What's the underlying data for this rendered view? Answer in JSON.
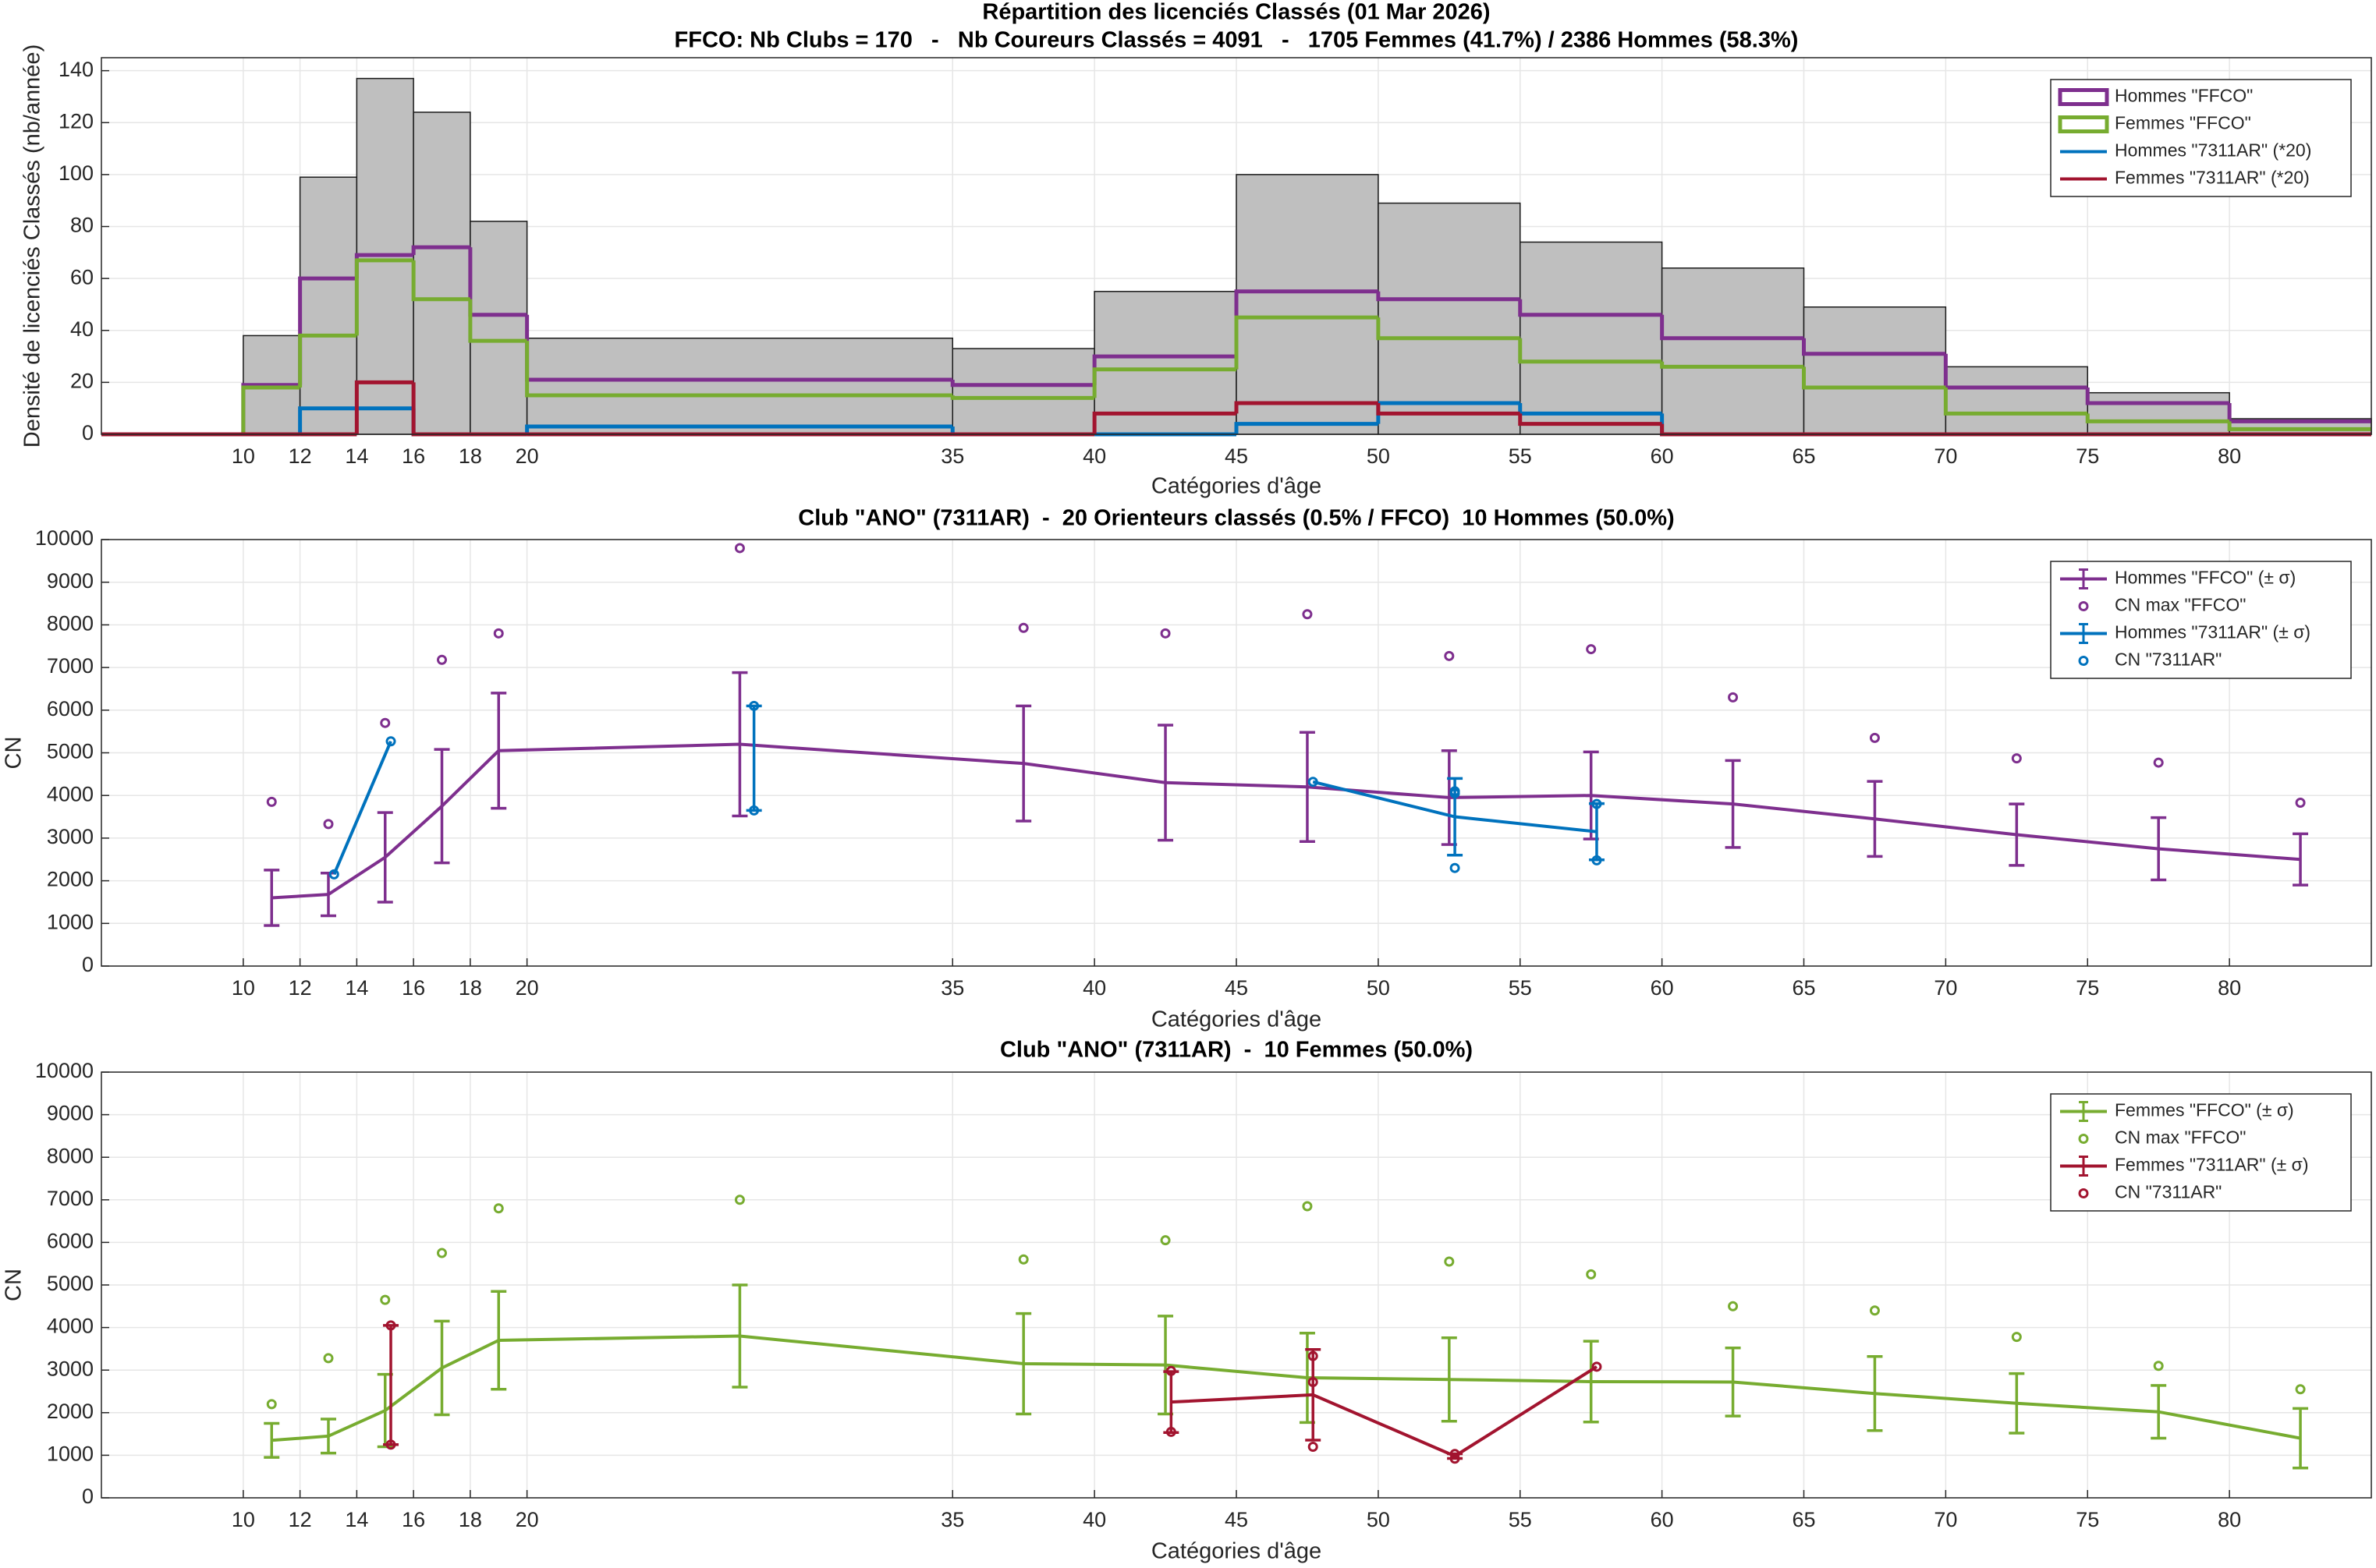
{
  "chart_data": [
    {
      "type": "histogram",
      "title": "Répartition des licenciés Classés (01 Mar 2026)",
      "subtitle": "FFCO: Nb Clubs = 170   -   Nb Coureurs Classés = 4091   -   1705 Femmes (41.7%) / 2386 Hommes (58.3%)",
      "xlabel": "Catégories d'âge",
      "ylabel": "Densité de licenciés Classés (nb/année)",
      "bins": [
        5,
        10,
        12,
        14,
        16,
        18,
        20,
        35,
        40,
        45,
        50,
        55,
        60,
        65,
        70,
        75,
        80,
        85
      ],
      "values": [
        0,
        38,
        99,
        137,
        124,
        82,
        37,
        33,
        55,
        100,
        89,
        74,
        64,
        49,
        26,
        16,
        6
      ],
      "color": "#bfbfbf",
      "series": [
        {
          "name": "Hommes \"FFCO\"",
          "color": "#7e2f8e",
          "values": [
            0,
            19,
            60,
            69,
            72,
            46,
            21,
            19,
            30,
            55,
            52,
            46,
            37,
            31,
            18,
            12,
            5
          ]
        },
        {
          "name": "Femmes \"FFCO\"",
          "color": "#77ac30",
          "values": [
            0,
            18,
            38,
            67,
            52,
            36,
            15,
            14,
            25,
            45,
            37,
            28,
            26,
            18,
            8,
            5,
            2
          ]
        },
        {
          "name": "Hommes \"7311AR\" (*20)",
          "color": "#0072bd",
          "values": [
            0,
            0,
            10,
            10,
            0,
            0,
            3,
            0,
            0,
            4,
            12,
            8,
            0,
            0,
            0,
            0,
            0
          ]
        },
        {
          "name": "Femmes \"7311AR\" (*20)",
          "color": "#a2142f",
          "values": [
            0,
            0,
            0,
            20,
            0,
            0,
            0,
            0,
            8,
            12,
            8,
            4,
            0,
            0,
            0,
            0,
            0
          ]
        }
      ],
      "xlim": [
        5,
        85
      ],
      "ylim": [
        0,
        145
      ],
      "xticks": [
        10,
        12,
        14,
        16,
        18,
        20,
        35,
        40,
        45,
        50,
        55,
        60,
        65,
        70,
        75,
        80
      ],
      "yticks": [
        0,
        20,
        40,
        60,
        80,
        100,
        120,
        140
      ],
      "grid": true,
      "legend": "northeast"
    },
    {
      "type": "line",
      "title": "Club \"ANO\" (7311AR)  -  20 Orienteurs classés (0.5% / FFCO)  10 Hommes (50.0%)",
      "xlabel": "Catégories d'âge",
      "ylabel": "CN",
      "series": [
        {
          "name": "Hommes \"FFCO\" (± σ)",
          "color": "#7e2f8e",
          "x": [
            11,
            13,
            15,
            17,
            19,
            27.5,
            37.5,
            42.5,
            47.5,
            52.5,
            57.5,
            62.5,
            67.5,
            72.5,
            77.5,
            82.5
          ],
          "values": [
            1600,
            1680,
            2550,
            3750,
            5050,
            5200,
            4750,
            4300,
            4200,
            3950,
            4000,
            3800,
            3450,
            3080,
            2750,
            2500
          ],
          "errors": [
            650,
            500,
            1050,
            1330,
            1350,
            1680,
            1350,
            1350,
            1280,
            1100,
            1020,
            1020,
            880,
            720,
            730,
            600
          ]
        },
        {
          "name": "CN max \"FFCO\"",
          "color": "#7e2f8e",
          "marker": "circle",
          "x": [
            11,
            13,
            15,
            17,
            19,
            27.5,
            37.5,
            42.5,
            47.5,
            52.5,
            57.5,
            62.5,
            67.5,
            72.5,
            77.5,
            82.5
          ],
          "values": [
            3850,
            3330,
            5700,
            7180,
            7800,
            9800,
            7930,
            7800,
            8250,
            7270,
            7430,
            6300,
            5350,
            4870,
            4770,
            3830
          ]
        },
        {
          "name": "Hommes \"7311AR\" (± σ)",
          "color": "#0072bd",
          "x": [
            11.2,
            13.2,
            15.2,
            17.2,
            19.2,
            28,
            37.7,
            42.7,
            47.7,
            52.7,
            57.7,
            62.7,
            67.7,
            72.7,
            77.7,
            82.7
          ],
          "values": [
            null,
            2150,
            5270,
            null,
            null,
            4875,
            null,
            null,
            4320,
            3500,
            3150,
            null,
            null,
            null,
            null,
            null
          ],
          "errors": [
            null,
            null,
            null,
            null,
            null,
            1225,
            null,
            null,
            null,
            900,
            660,
            null,
            null,
            null,
            null,
            null
          ]
        },
        {
          "name": "CN \"7311AR\"",
          "color": "#0072bd",
          "marker": "circle",
          "x": [
            13.2,
            15.2,
            28,
            28,
            47.7,
            52.7,
            52.7,
            52.7,
            57.7,
            57.7
          ],
          "values": [
            2150,
            5270,
            6100,
            3650,
            4320,
            4100,
            4050,
            2300,
            3800,
            2480
          ]
        }
      ],
      "xlim": [
        5,
        85
      ],
      "ylim": [
        0,
        10000
      ],
      "xticks": [
        10,
        12,
        14,
        16,
        18,
        20,
        35,
        40,
        45,
        50,
        55,
        60,
        65,
        70,
        75,
        80
      ],
      "yticks": [
        0,
        1000,
        2000,
        3000,
        4000,
        5000,
        6000,
        7000,
        8000,
        9000,
        10000
      ],
      "grid": true,
      "legend": "northeast"
    },
    {
      "type": "line",
      "title": "Club \"ANO\" (7311AR)  -  10 Femmes (50.0%)",
      "xlabel": "Catégories d'âge",
      "ylabel": "CN",
      "series": [
        {
          "name": "Femmes \"FFCO\" (± σ)",
          "color": "#77ac30",
          "x": [
            11,
            13,
            15,
            17,
            19,
            27.5,
            37.5,
            42.5,
            47.5,
            52.5,
            57.5,
            62.5,
            67.5,
            72.5,
            77.5,
            82.5
          ],
          "values": [
            1350,
            1450,
            2050,
            3050,
            3700,
            3800,
            3150,
            3120,
            2820,
            2780,
            2730,
            2720,
            2450,
            2220,
            2020,
            1400
          ],
          "errors": [
            400,
            400,
            850,
            1100,
            1150,
            1200,
            1180,
            1150,
            1050,
            980,
            950,
            800,
            870,
            700,
            620,
            700
          ]
        },
        {
          "name": "CN max \"FFCO\"",
          "color": "#77ac30",
          "marker": "circle",
          "x": [
            11,
            13,
            15,
            17,
            19,
            27.5,
            37.5,
            42.5,
            47.5,
            52.5,
            57.5,
            62.5,
            67.5,
            72.5,
            77.5,
            82.5
          ],
          "values": [
            2200,
            3280,
            4650,
            5750,
            6800,
            7000,
            5600,
            6050,
            6850,
            5550,
            5250,
            4500,
            4400,
            3780,
            3100,
            2550
          ]
        },
        {
          "name": "Femmes \"7311AR\" (± σ)",
          "color": "#a2142f",
          "x": [
            11.2,
            13.2,
            15.2,
            17.2,
            19.2,
            28,
            37.7,
            42.7,
            47.7,
            52.7,
            57.7,
            62.7,
            67.7,
            72.7,
            77.7,
            82.7
          ],
          "values": [
            null,
            null,
            2650,
            null,
            null,
            null,
            null,
            2250,
            2420,
            980,
            3080,
            null,
            null,
            null,
            null,
            null
          ],
          "errors": [
            null,
            null,
            1400,
            null,
            null,
            null,
            null,
            715,
            1065,
            55,
            null,
            null,
            null,
            null,
            null,
            null
          ]
        },
        {
          "name": "CN \"7311AR\"",
          "color": "#a2142f",
          "marker": "circle",
          "x": [
            15.2,
            15.2,
            42.7,
            42.7,
            47.7,
            47.7,
            47.7,
            52.7,
            52.7,
            57.7
          ],
          "values": [
            4050,
            1250,
            2980,
            1550,
            3330,
            2720,
            1200,
            1030,
            920,
            3080
          ]
        }
      ],
      "xlim": [
        5,
        85
      ],
      "ylim": [
        0,
        10000
      ],
      "xticks": [
        10,
        12,
        14,
        16,
        18,
        20,
        35,
        40,
        45,
        50,
        55,
        60,
        65,
        70,
        75,
        80
      ],
      "yticks": [
        0,
        1000,
        2000,
        3000,
        4000,
        5000,
        6000,
        7000,
        8000,
        9000,
        10000
      ],
      "grid": true,
      "legend": "northeast"
    }
  ]
}
